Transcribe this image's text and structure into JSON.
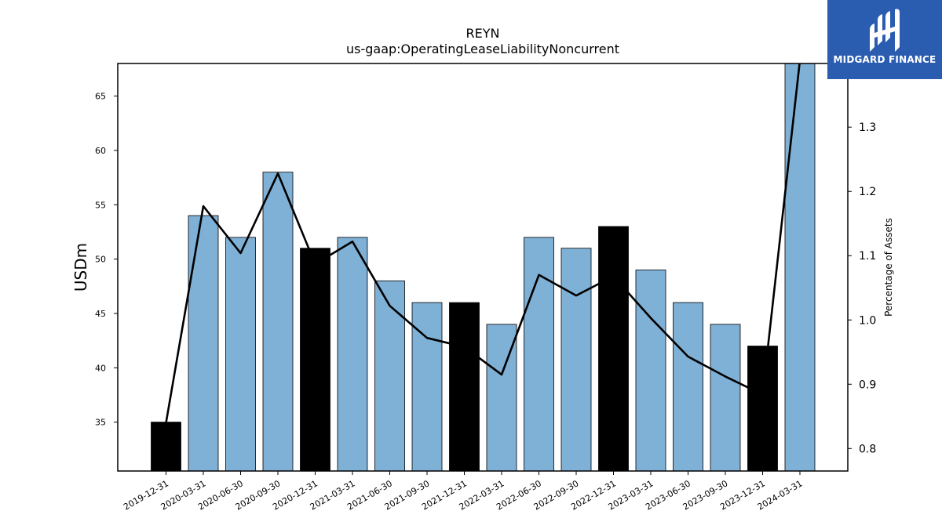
{
  "chart_data": {
    "type": "bar",
    "title": "REYN",
    "subtitle": "us-gaap:OperatingLeaseLiabilityNoncurrent",
    "ylabel": "USDm",
    "y2label": "Percentage of Assets",
    "categories": [
      "2019-12-31",
      "2020-03-31",
      "2020-06-30",
      "2020-09-30",
      "2020-12-31",
      "2021-03-31",
      "2021-06-30",
      "2021-09-30",
      "2021-12-31",
      "2022-03-31",
      "2022-06-30",
      "2022-09-30",
      "2022-12-31",
      "2023-03-31",
      "2023-06-30",
      "2023-09-30",
      "2023-12-31",
      "2024-03-31"
    ],
    "series": [
      {
        "type": "bar",
        "values": [
          35,
          54,
          52,
          58,
          51,
          52,
          48,
          46,
          46,
          44,
          52,
          51,
          53,
          49,
          46,
          44,
          42,
          68
        ],
        "highlight": [
          true,
          false,
          false,
          false,
          true,
          false,
          false,
          false,
          true,
          false,
          false,
          false,
          true,
          false,
          false,
          false,
          true,
          false
        ]
      },
      {
        "type": "line",
        "axis": "right",
        "values": [
          0.84,
          1.177,
          1.104,
          1.228,
          1.087,
          1.122,
          1.022,
          0.972,
          0.958,
          0.915,
          1.07,
          1.038,
          1.068,
          1.003,
          0.943,
          0.912,
          0.884,
          1.408
        ]
      }
    ],
    "ylim": [
      30.5,
      68
    ],
    "y2lim": [
      0.765,
      1.399
    ],
    "yticks": [
      35,
      40,
      45,
      50,
      55,
      60,
      65
    ],
    "y2ticks": [
      0.8,
      0.9,
      1.0,
      1.1,
      1.2,
      1.3
    ],
    "grid": false,
    "legend": "none",
    "colors": {
      "bar": "#7fb0d5",
      "highlight": "#000000",
      "line": "#000000"
    }
  },
  "brand": {
    "name": "MIDGARD FINANCE",
    "color": "#2a5db0"
  }
}
